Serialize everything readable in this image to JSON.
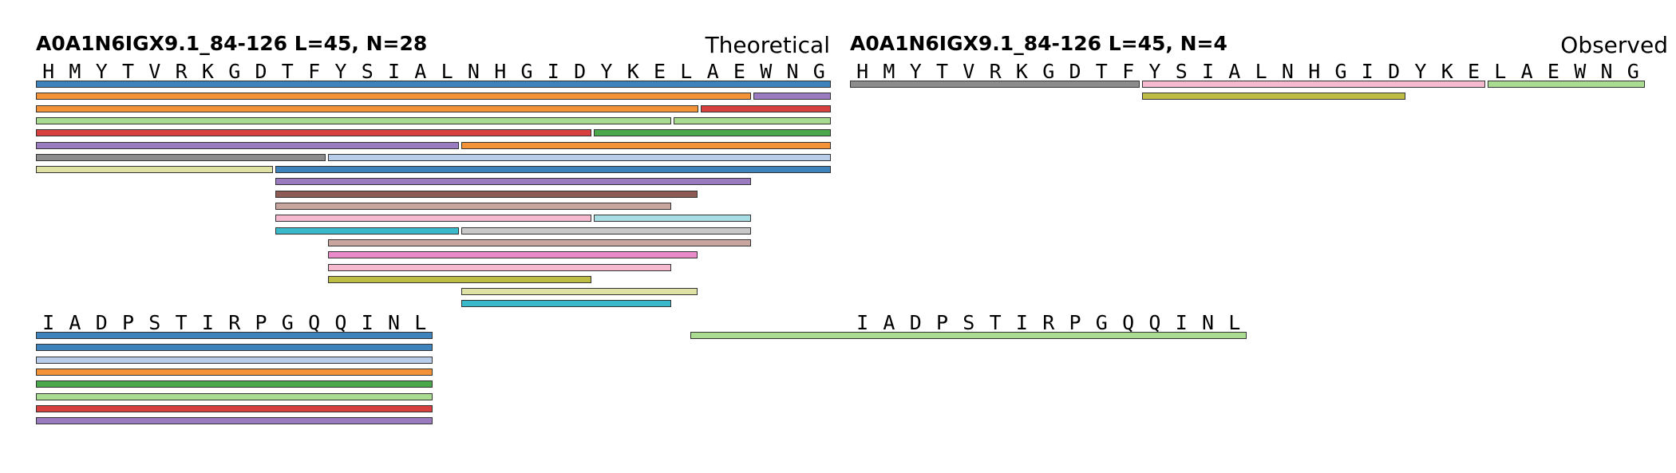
{
  "panels": [
    {
      "title": "A0A1N6IGX9.1_84-126  L=45, N=28",
      "tag": "Theoretical",
      "rows": [
        {
          "sequence": [
            "H",
            "M",
            "Y",
            "T",
            "V",
            "R",
            "K",
            "G",
            "D",
            "T",
            "F",
            "Y",
            "S",
            "I",
            "A",
            "L",
            "N",
            "H",
            "G",
            "I",
            "D",
            "Y",
            "K",
            "E",
            "L",
            "A",
            "E",
            "W",
            "N",
            "G"
          ],
          "start_index": 1,
          "tracks": [
            [
              {
                "start": 1,
                "end": 30,
                "color": "#3f83bd"
              }
            ],
            [
              {
                "start": 1,
                "end": 27,
                "color": "#f39237"
              },
              {
                "start": 28,
                "end": 30,
                "color": "#9a7bc0"
              }
            ],
            [
              {
                "start": 1,
                "end": 25,
                "color": "#f39237"
              },
              {
                "start": 26,
                "end": 30,
                "color": "#d84040"
              }
            ],
            [
              {
                "start": 1,
                "end": 24,
                "color": "#a9dc90"
              },
              {
                "start": 25,
                "end": 30,
                "color": "#a9dc90"
              }
            ],
            [
              {
                "start": 1,
                "end": 21,
                "color": "#d84040"
              },
              {
                "start": 22,
                "end": 30,
                "color": "#4aa84a"
              }
            ],
            [
              {
                "start": 1,
                "end": 16,
                "color": "#9a7bc0"
              },
              {
                "start": 17,
                "end": 30,
                "color": "#f39237"
              }
            ],
            [
              {
                "start": 1,
                "end": 11,
                "color": "#8c8c8c"
              },
              {
                "start": 12,
                "end": 30,
                "color": "#b7cde9"
              }
            ],
            [
              {
                "start": 1,
                "end": 9,
                "color": "#dfe2a4"
              },
              {
                "start": 10,
                "end": 30,
                "color": "#3f83bd"
              }
            ],
            [
              {
                "start": 10,
                "end": 27,
                "color": "#9a7bc0"
              }
            ],
            [
              {
                "start": 10,
                "end": 25,
                "color": "#8d5a54"
              }
            ],
            [
              {
                "start": 10,
                "end": 24,
                "color": "#c9a59f"
              }
            ],
            [
              {
                "start": 10,
                "end": 21,
                "color": "#f5b9d0"
              },
              {
                "start": 22,
                "end": 27,
                "color": "#a8dde4"
              }
            ],
            [
              {
                "start": 10,
                "end": 16,
                "color": "#3ab9cb"
              },
              {
                "start": 17,
                "end": 27,
                "color": "#c9c9c9"
              }
            ],
            [
              {
                "start": 12,
                "end": 27,
                "color": "#c9a59f"
              }
            ],
            [
              {
                "start": 12,
                "end": 25,
                "color": "#e88bc8"
              }
            ],
            [
              {
                "start": 12,
                "end": 24,
                "color": "#f5b9d0"
              }
            ],
            [
              {
                "start": 12,
                "end": 21,
                "color": "#bdbd45"
              }
            ],
            [
              {
                "start": 17,
                "end": 25,
                "color": "#dfe2a4"
              }
            ],
            [
              {
                "start": 17,
                "end": 24,
                "color": "#3ab9cb"
              }
            ]
          ]
        },
        {
          "sequence": [
            "I",
            "A",
            "D",
            "P",
            "S",
            "T",
            "I",
            "R",
            "P",
            "G",
            "Q",
            "Q",
            "I",
            "N",
            "L"
          ],
          "start_index": 31,
          "tracks": [
            [
              {
                "start": 31,
                "end": 45,
                "color": "#3f83bd"
              }
            ],
            [
              {
                "start": 31,
                "end": 45,
                "color": "#3f83bd"
              }
            ],
            [
              {
                "start": 31,
                "end": 45,
                "color": "#b7cde9"
              }
            ],
            [
              {
                "start": 31,
                "end": 45,
                "color": "#f39237"
              }
            ],
            [
              {
                "start": 31,
                "end": 45,
                "color": "#4aa84a"
              }
            ],
            [
              {
                "start": 31,
                "end": 45,
                "color": "#a9dc90"
              }
            ],
            [
              {
                "start": 31,
                "end": 45,
                "color": "#d84040"
              }
            ],
            [
              {
                "start": 31,
                "end": 45,
                "color": "#9a7bc0"
              }
            ]
          ]
        }
      ]
    },
    {
      "title": "A0A1N6IGX9.1_84-126  L=45, N=4",
      "tag": "Observed",
      "rows": [
        {
          "sequence": [
            "H",
            "M",
            "Y",
            "T",
            "V",
            "R",
            "K",
            "G",
            "D",
            "T",
            "F",
            "Y",
            "S",
            "I",
            "A",
            "L",
            "N",
            "H",
            "G",
            "I",
            "D",
            "Y",
            "K",
            "E",
            "L",
            "A",
            "E",
            "W",
            "N",
            "G"
          ],
          "start_index": 1,
          "tracks": [
            [
              {
                "start": 1,
                "end": 11,
                "color": "#8c8c8c"
              },
              {
                "start": 12,
                "end": 24,
                "color": "#f5b9d0"
              },
              {
                "start": 25,
                "end": 30,
                "color": "#a9dc90"
              }
            ],
            [
              {
                "start": 12,
                "end": 21,
                "color": "#bdbd45"
              }
            ]
          ]
        },
        {
          "sequence": [
            "I",
            "A",
            "D",
            "P",
            "S",
            "T",
            "I",
            "R",
            "P",
            "G",
            "Q",
            "Q",
            "I",
            "N",
            "L"
          ],
          "start_index": 31,
          "tracks": [
            [
              {
                "start": 25,
                "end": 45,
                "color": "#a9dc90"
              }
            ]
          ]
        }
      ]
    }
  ]
}
